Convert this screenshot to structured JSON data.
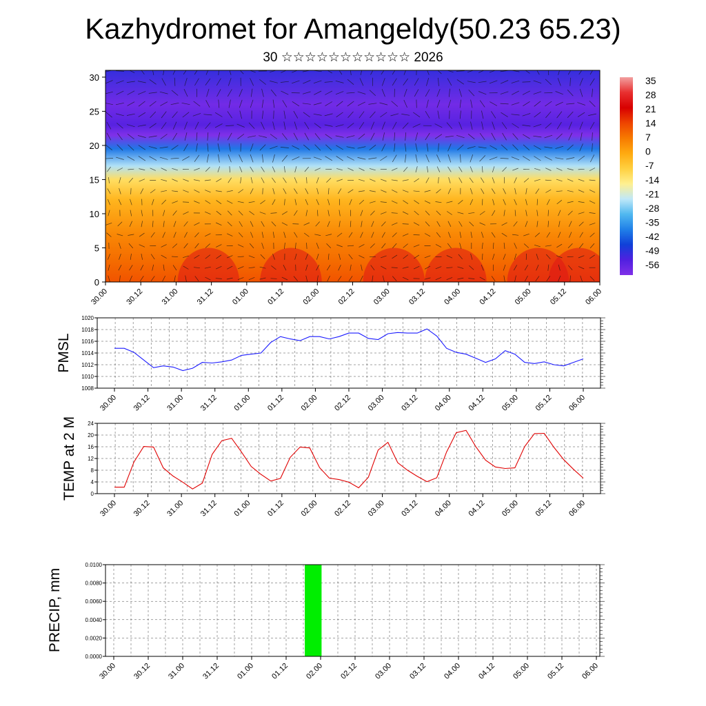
{
  "header": {
    "title": "Kazhydromet for Amangeldy(50.23 65.23)",
    "subtitle": "30 ☆☆☆☆☆☆☆☆☆☆☆ 2026"
  },
  "colors": {
    "pmsl_line": "#1a1aff",
    "temp_line": "#e00000",
    "precip_bar": "#00ee00",
    "grid": "#444444"
  },
  "time_ticks": [
    "30.00",
    "30.12",
    "31.00",
    "31.12",
    "01.00",
    "01.12",
    "02.00",
    "02.12",
    "03.00",
    "03.12",
    "04.00",
    "04.12",
    "05.00",
    "05.12",
    "06.00"
  ],
  "chart_data": [
    {
      "id": "cross_section",
      "type": "heatmap",
      "description_var": "temperature vertical section with wind streamlines",
      "y_ticks": [
        0,
        5,
        10,
        15,
        20,
        25,
        30
      ],
      "ylim": [
        0,
        31
      ],
      "colorbar": {
        "labels": [
          "35",
          "28",
          "21",
          "14",
          "7",
          "0",
          "-7",
          "-14",
          "-21",
          "-28",
          "-35",
          "-42",
          "-49",
          "-56"
        ],
        "colors": [
          "#f2a0a0",
          "#e83030",
          "#d80000",
          "#ee4400",
          "#f77a00",
          "#ffaa10",
          "#ffd040",
          "#fff090",
          "#c0e8f8",
          "#50b8f0",
          "#2080e8",
          "#1040d8",
          "#5020e0",
          "#8030e8"
        ]
      },
      "level_profile": [
        {
          "level": 0,
          "value": 12
        },
        {
          "level": 3,
          "value": 9
        },
        {
          "level": 7,
          "value": 5
        },
        {
          "level": 12,
          "value": -2
        },
        {
          "level": 15,
          "value": -10
        },
        {
          "level": 17,
          "value": -22
        },
        {
          "level": 19.5,
          "value": -36
        },
        {
          "level": 21.5,
          "value": -58
        },
        {
          "level": 23,
          "value": -50
        },
        {
          "level": 26,
          "value": -54
        },
        {
          "level": 31,
          "value": -46
        }
      ]
    },
    {
      "id": "pmsl",
      "type": "line",
      "ylabel": "PMSL",
      "y_ticks": [
        "1020",
        "1018",
        "1016",
        "1014",
        "1012",
        "1010",
        "1008"
      ],
      "ylim": [
        1008,
        1020
      ],
      "x": [
        0,
        3,
        6,
        9,
        12,
        15,
        18,
        21,
        24,
        27,
        30,
        33,
        36,
        39,
        42,
        45,
        48,
        51,
        54,
        57,
        60,
        63,
        66,
        69,
        72,
        75,
        78,
        81,
        84,
        87,
        90,
        93,
        96,
        99,
        102,
        105,
        108,
        111,
        114,
        117,
        120,
        123,
        126,
        129,
        132,
        135,
        138,
        141,
        144
      ],
      "values": [
        1014.8,
        1014.8,
        1014.1,
        1012.8,
        1011.5,
        1011.8,
        1011.6,
        1011.0,
        1011.4,
        1012.4,
        1012.3,
        1012.5,
        1012.8,
        1013.6,
        1013.8,
        1014.0,
        1015.8,
        1016.8,
        1016.4,
        1016.1,
        1016.8,
        1016.8,
        1016.4,
        1016.8,
        1017.4,
        1017.4,
        1016.5,
        1016.3,
        1017.3,
        1017.5,
        1017.4,
        1017.4,
        1018.1,
        1016.9,
        1014.8,
        1014.1,
        1013.8,
        1013.1,
        1012.4,
        1013.0,
        1014.4,
        1013.8,
        1012.4,
        1012.2,
        1012.5,
        1012.0,
        1011.8,
        1012.4,
        1013.0
      ]
    },
    {
      "id": "temp2m",
      "type": "line",
      "ylabel": "TEMP at 2 M",
      "y_ticks": [
        "24",
        "20",
        "16",
        "12",
        "8",
        "4",
        "0"
      ],
      "ylim": [
        0,
        24
      ],
      "x": [
        0,
        3,
        6,
        9,
        12,
        15,
        18,
        21,
        24,
        27,
        30,
        33,
        36,
        39,
        42,
        45,
        48,
        51,
        54,
        57,
        60,
        63,
        66,
        69,
        72,
        75,
        78,
        81,
        84,
        87,
        90,
        93,
        96,
        99,
        102,
        105,
        108,
        111,
        114,
        117,
        120,
        123,
        126,
        129,
        132,
        135,
        138,
        141,
        144
      ],
      "values": [
        2.2,
        2.2,
        10.8,
        16.1,
        15.9,
        8.8,
        6.0,
        3.9,
        1.6,
        3.6,
        13.4,
        18.1,
        18.9,
        14.2,
        9.3,
        6.6,
        4.3,
        5.2,
        12.4,
        15.9,
        15.6,
        8.9,
        5.3,
        4.8,
        3.9,
        2.0,
        5.6,
        14.9,
        17.5,
        10.6,
        8.0,
        5.9,
        4.1,
        5.4,
        14.2,
        20.8,
        21.6,
        16.0,
        11.4,
        9.1,
        8.6,
        8.8,
        16.1,
        20.5,
        20.6,
        15.8,
        11.6,
        8.3,
        5.3
      ]
    },
    {
      "id": "precip",
      "type": "bar",
      "ylabel": "PRECIP, mm",
      "y_ticks": [
        "0.0100",
        "0.0080",
        "0.0060",
        "0.0040",
        "0.0020",
        "0.0000"
      ],
      "ylim": [
        0,
        0.01
      ],
      "bars": [
        {
          "x_start": 57,
          "x_end": 62,
          "value": 0.01
        }
      ]
    }
  ]
}
